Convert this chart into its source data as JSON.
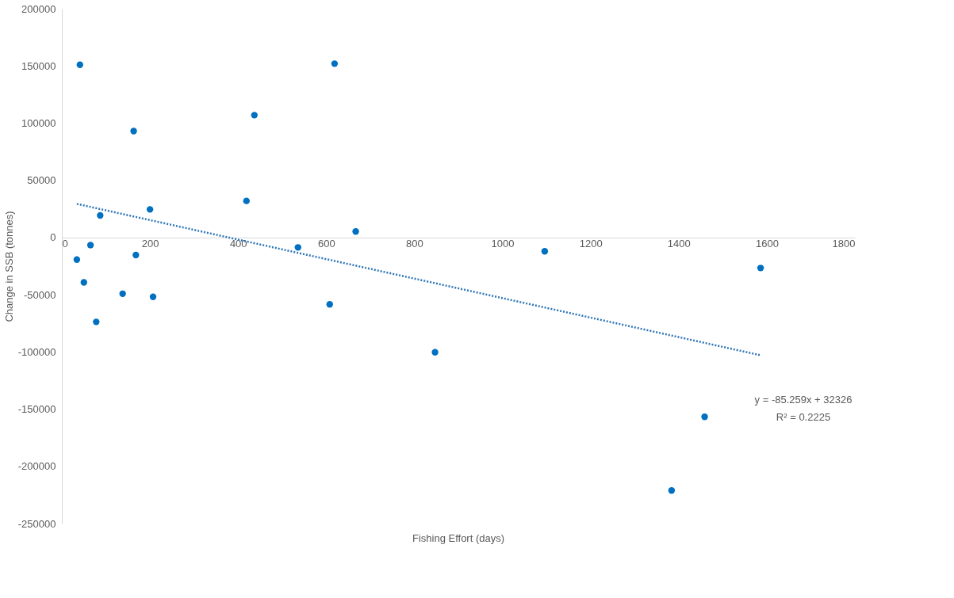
{
  "chart_data": {
    "type": "scatter",
    "xlabel": "Fishing Effort (days)",
    "ylabel": "Change in SSB (tonnes)",
    "x": [
      41,
      619,
      437,
      163,
      419,
      200,
      87,
      667,
      65,
      536,
      1096,
      168,
      34,
      1586,
      50,
      138,
      207,
      608,
      78,
      847,
      1459,
      1384
    ],
    "series": [
      {
        "color": "#0070c0",
        "marker": "circle",
        "values": [
          151000,
          152000,
          107000,
          93000,
          32000,
          24600,
          19300,
          5300,
          -6600,
          -8600,
          -12000,
          -15300,
          -19300,
          -26600,
          -39200,
          -49100,
          -51800,
          -58400,
          -73700,
          -100300,
          -156700,
          -221100
        ]
      },
      {
        "type": "line",
        "color": "#2e75b6",
        "line_style": "dotted",
        "marker": "none",
        "x": [
          34,
          1586
        ],
        "values": [
          29400,
          -102900
        ]
      }
    ],
    "annotations": [
      "y = -85.259x + 32326\nR² = 0.2225"
    ],
    "xlim": [
      0,
      1800
    ],
    "xticks": [
      0,
      200,
      400,
      600,
      800,
      1000,
      1200,
      1400,
      1600,
      1800
    ],
    "ylim": [
      -250000,
      200000
    ],
    "yticks": [
      -250000,
      -200000,
      -150000,
      -100000,
      -50000,
      0,
      50000,
      100000,
      150000,
      200000
    ],
    "grid": false
  }
}
